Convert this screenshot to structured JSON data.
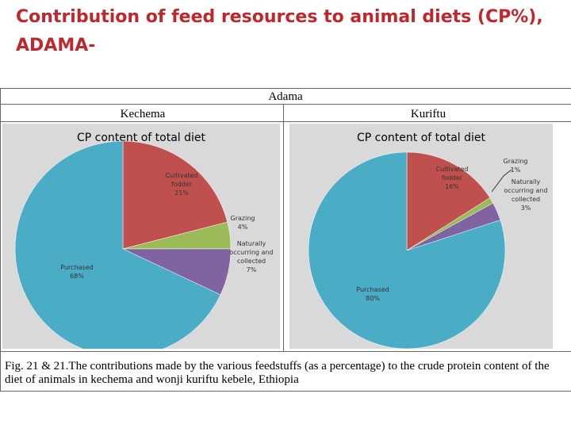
{
  "slide": {
    "title": "Contribution of feed resources to animal diets (CP%), ADAMA-"
  },
  "table": {
    "header": "Adama",
    "col1": "Kechema",
    "col2": "Kuriftu",
    "caption": "Fig. 21 & 21.The contributions made by the various feedstuffs (as a percentage) to the crude protein content of the diet of animals in kechema and wonji kuriftu  kebele, Ethiopia"
  },
  "chart_data": [
    {
      "type": "pie",
      "title": "CP content of total diet",
      "location": "Kechema",
      "slices": [
        {
          "name": "Cultivated fodder",
          "value": 21,
          "label": "21%",
          "color": "#c0504d"
        },
        {
          "name": "Grazing",
          "value": 4,
          "label": "4%",
          "color": "#9bbb59"
        },
        {
          "name": "Naturally occurring and collected",
          "value": 7,
          "label": "7%",
          "color": "#8064a2"
        },
        {
          "name": "Purchased",
          "value": 68,
          "label": "68%",
          "color": "#4bacc6"
        }
      ]
    },
    {
      "type": "pie",
      "title": "CP content of total diet",
      "location": "Kuriftu",
      "slices": [
        {
          "name": "Cultivated fodder",
          "value": 16,
          "label": "16%",
          "color": "#c0504d"
        },
        {
          "name": "Grazing",
          "value": 1,
          "label": "1%",
          "color": "#9bbb59"
        },
        {
          "name": "Naturally occurring and collected",
          "value": 3,
          "label": "3%",
          "color": "#8064a2"
        },
        {
          "name": "Purchased",
          "value": 80,
          "label": "80%",
          "color": "#4bacc6"
        }
      ]
    }
  ]
}
